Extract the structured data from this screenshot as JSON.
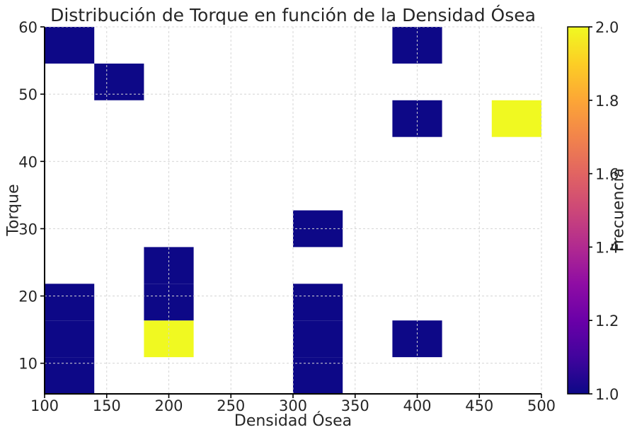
{
  "figure_bg": "#ffffff",
  "text_color": "#262626",
  "chart_data": {
    "type": "heatmap",
    "subtype": "2d-histogram",
    "title": "Distribución de Torque en función de la Densidad Ósea",
    "xlabel": "Densidad Ósea",
    "ylabel": "Torque",
    "colorbar_label": "Frecuencia",
    "xlim": [
      100,
      500
    ],
    "ylim": [
      5.45,
      60
    ],
    "x_ticks": [
      100,
      150,
      200,
      250,
      300,
      350,
      400,
      450,
      500
    ],
    "y_ticks": [
      10,
      20,
      30,
      40,
      50,
      60
    ],
    "x_bin_edges": [
      100,
      140,
      180,
      220,
      260,
      300,
      340,
      380,
      420,
      460,
      500
    ],
    "y_bin_edges": [
      5.45,
      10.91,
      16.36,
      21.82,
      27.27,
      32.73,
      38.18,
      43.64,
      49.09,
      54.55,
      60
    ],
    "grid": "dashed",
    "grid_color": "#d4d4d4",
    "spine_color": "#000000",
    "colormap": "plasma",
    "colormap_stops": [
      "#0d0887",
      "#41049d",
      "#6a00a8",
      "#8f0da4",
      "#b12a90",
      "#cc4778",
      "#e16462",
      "#f2844b",
      "#fca636",
      "#fcce25",
      "#f0f921"
    ],
    "vmin": 1.0,
    "vmax": 2.0,
    "colorbar_ticks": [
      1.0,
      1.2,
      1.4,
      1.6,
      1.8,
      2.0
    ],
    "value_colors": {
      "1": "#0d0887",
      "2": "#f0f921"
    },
    "cells": [
      {
        "x": [
          100,
          140
        ],
        "y": [
          5.45,
          10.91
        ],
        "value": 1
      },
      {
        "x": [
          100,
          140
        ],
        "y": [
          10.91,
          16.36
        ],
        "value": 1
      },
      {
        "x": [
          100,
          140
        ],
        "y": [
          16.36,
          21.82
        ],
        "value": 1
      },
      {
        "x": [
          100,
          140
        ],
        "y": [
          54.55,
          60
        ],
        "value": 1
      },
      {
        "x": [
          140,
          180
        ],
        "y": [
          49.09,
          54.55
        ],
        "value": 1
      },
      {
        "x": [
          180,
          220
        ],
        "y": [
          10.91,
          16.36
        ],
        "value": 2
      },
      {
        "x": [
          180,
          220
        ],
        "y": [
          16.36,
          21.82
        ],
        "value": 1
      },
      {
        "x": [
          180,
          220
        ],
        "y": [
          21.82,
          27.27
        ],
        "value": 1
      },
      {
        "x": [
          300,
          340
        ],
        "y": [
          5.45,
          10.91
        ],
        "value": 1
      },
      {
        "x": [
          300,
          340
        ],
        "y": [
          10.91,
          16.36
        ],
        "value": 1
      },
      {
        "x": [
          300,
          340
        ],
        "y": [
          16.36,
          21.82
        ],
        "value": 1
      },
      {
        "x": [
          300,
          340
        ],
        "y": [
          27.27,
          32.73
        ],
        "value": 1
      },
      {
        "x": [
          380,
          420
        ],
        "y": [
          10.91,
          16.36
        ],
        "value": 1
      },
      {
        "x": [
          380,
          420
        ],
        "y": [
          43.64,
          49.09
        ],
        "value": 1
      },
      {
        "x": [
          380,
          420
        ],
        "y": [
          54.55,
          60
        ],
        "value": 1
      },
      {
        "x": [
          460,
          500
        ],
        "y": [
          43.64,
          49.09
        ],
        "value": 2
      }
    ]
  }
}
